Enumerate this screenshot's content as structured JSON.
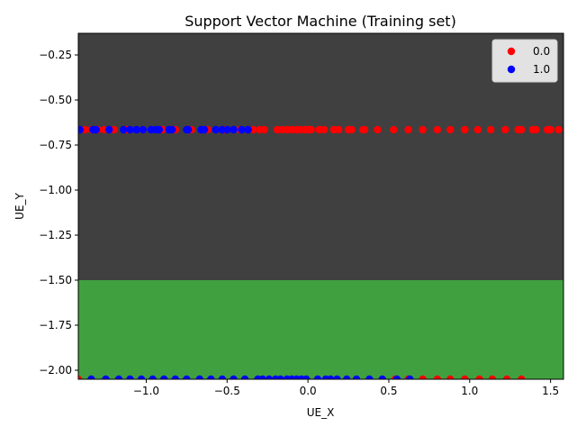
{
  "chart_data": {
    "type": "scatter",
    "title": "Support Vector Machine (Training set)",
    "xlabel": "UE_X",
    "ylabel": "UE_Y",
    "xlim": [
      -1.42,
      1.58
    ],
    "ylim": [
      -2.05,
      -0.13
    ],
    "x_ticks": [
      {
        "v": -1.0,
        "label": "−1.0"
      },
      {
        "v": -0.5,
        "label": "−0.5"
      },
      {
        "v": 0.0,
        "label": "0.0"
      },
      {
        "v": 0.5,
        "label": "0.5"
      },
      {
        "v": 1.0,
        "label": "1.0"
      },
      {
        "v": 1.5,
        "label": "1.5"
      }
    ],
    "y_ticks": [
      {
        "v": -0.25,
        "label": "−0.25"
      },
      {
        "v": -0.5,
        "label": "−0.50"
      },
      {
        "v": -0.75,
        "label": "−0.75"
      },
      {
        "v": -1.0,
        "label": "−1.00"
      },
      {
        "v": -1.25,
        "label": "−1.25"
      },
      {
        "v": -1.5,
        "label": "−1.50"
      },
      {
        "v": -1.75,
        "label": "−1.75"
      },
      {
        "v": -2.0,
        "label": "−2.00"
      }
    ],
    "regions": [
      {
        "class": "0.0",
        "y_from": -1.5,
        "y_to": -0.13,
        "color": "#404040"
      },
      {
        "class": "1.0",
        "y_from": -2.05,
        "y_to": -1.5,
        "color": "#40a040"
      }
    ],
    "legend": {
      "placement": "top-right",
      "entries": [
        {
          "label": "0.0",
          "color": "#ff0000"
        },
        {
          "label": "1.0",
          "color": "#0000ff"
        }
      ]
    },
    "series": [
      {
        "name": "0.0",
        "color": "#ff0000",
        "points": [
          [
            -1.42,
            -0.665
          ],
          [
            -1.38,
            -0.665
          ],
          [
            -1.34,
            -0.665
          ],
          [
            -1.3,
            -0.665
          ],
          [
            -1.26,
            -0.665
          ],
          [
            -1.2,
            -0.665
          ],
          [
            -1.12,
            -0.665
          ],
          [
            -1.02,
            -0.665
          ],
          [
            -0.9,
            -0.665
          ],
          [
            -0.82,
            -0.665
          ],
          [
            -0.72,
            -0.665
          ],
          [
            -0.62,
            -0.665
          ],
          [
            -0.52,
            -0.665
          ],
          [
            -0.42,
            -0.665
          ],
          [
            -0.34,
            -0.665
          ],
          [
            -0.3,
            -0.665
          ],
          [
            -0.27,
            -0.665
          ],
          [
            -0.19,
            -0.665
          ],
          [
            -0.16,
            -0.665
          ],
          [
            -0.13,
            -0.665
          ],
          [
            -0.1,
            -0.665
          ],
          [
            -0.07,
            -0.665
          ],
          [
            -0.05,
            -0.665
          ],
          [
            -0.02,
            -0.665
          ],
          [
            0.0,
            -0.665
          ],
          [
            0.02,
            -0.665
          ],
          [
            0.07,
            -0.665
          ],
          [
            0.1,
            -0.665
          ],
          [
            0.16,
            -0.665
          ],
          [
            0.19,
            -0.665
          ],
          [
            0.25,
            -0.665
          ],
          [
            0.27,
            -0.665
          ],
          [
            0.34,
            -0.665
          ],
          [
            0.35,
            -0.665
          ],
          [
            0.43,
            -0.665
          ],
          [
            0.53,
            -0.665
          ],
          [
            0.62,
            -0.665
          ],
          [
            0.71,
            -0.665
          ],
          [
            0.8,
            -0.665
          ],
          [
            0.88,
            -0.665
          ],
          [
            0.97,
            -0.665
          ],
          [
            1.05,
            -0.665
          ],
          [
            1.13,
            -0.665
          ],
          [
            1.22,
            -0.665
          ],
          [
            1.3,
            -0.665
          ],
          [
            1.32,
            -0.665
          ],
          [
            1.39,
            -0.665
          ],
          [
            1.41,
            -0.665
          ],
          [
            1.48,
            -0.665
          ],
          [
            1.5,
            -0.665
          ],
          [
            1.55,
            -0.665
          ],
          [
            -1.42,
            -2.05
          ],
          [
            0.54,
            -2.05
          ],
          [
            0.62,
            -2.05
          ],
          [
            0.71,
            -2.05
          ],
          [
            0.8,
            -2.05
          ],
          [
            0.88,
            -2.05
          ],
          [
            0.97,
            -2.05
          ],
          [
            1.06,
            -2.05
          ],
          [
            1.14,
            -2.05
          ],
          [
            1.23,
            -2.05
          ],
          [
            1.32,
            -2.05
          ]
        ]
      },
      {
        "name": "1.0",
        "color": "#0000ff",
        "points": [
          [
            -1.41,
            -0.665
          ],
          [
            -1.33,
            -0.665
          ],
          [
            -1.31,
            -0.665
          ],
          [
            -1.23,
            -0.665
          ],
          [
            -1.14,
            -0.665
          ],
          [
            -1.1,
            -0.665
          ],
          [
            -1.06,
            -0.665
          ],
          [
            -1.02,
            -0.665
          ],
          [
            -0.97,
            -0.665
          ],
          [
            -0.94,
            -0.665
          ],
          [
            -0.92,
            -0.665
          ],
          [
            -0.86,
            -0.665
          ],
          [
            -0.84,
            -0.665
          ],
          [
            -0.75,
            -0.665
          ],
          [
            -0.74,
            -0.665
          ],
          [
            -0.66,
            -0.665
          ],
          [
            -0.64,
            -0.665
          ],
          [
            -0.57,
            -0.665
          ],
          [
            -0.53,
            -0.665
          ],
          [
            -0.5,
            -0.665
          ],
          [
            -0.46,
            -0.665
          ],
          [
            -0.41,
            -0.665
          ],
          [
            -0.37,
            -0.665
          ],
          [
            -1.34,
            -2.05
          ],
          [
            -1.25,
            -2.05
          ],
          [
            -1.17,
            -2.05
          ],
          [
            -1.1,
            -2.05
          ],
          [
            -1.03,
            -2.05
          ],
          [
            -0.96,
            -2.05
          ],
          [
            -0.89,
            -2.05
          ],
          [
            -0.82,
            -2.05
          ],
          [
            -0.75,
            -2.05
          ],
          [
            -0.67,
            -2.05
          ],
          [
            -0.6,
            -2.05
          ],
          [
            -0.53,
            -2.05
          ],
          [
            -0.46,
            -2.05
          ],
          [
            -0.39,
            -2.05
          ],
          [
            -0.31,
            -2.05
          ],
          [
            -0.28,
            -2.05
          ],
          [
            -0.24,
            -2.05
          ],
          [
            -0.2,
            -2.05
          ],
          [
            -0.17,
            -2.05
          ],
          [
            -0.13,
            -2.05
          ],
          [
            -0.1,
            -2.05
          ],
          [
            -0.07,
            -2.05
          ],
          [
            -0.04,
            -2.05
          ],
          [
            -0.01,
            -2.05
          ],
          [
            0.06,
            -2.05
          ],
          [
            0.11,
            -2.05
          ],
          [
            0.14,
            -2.05
          ],
          [
            0.18,
            -2.05
          ],
          [
            0.24,
            -2.05
          ],
          [
            0.3,
            -2.05
          ],
          [
            0.38,
            -2.05
          ],
          [
            0.46,
            -2.05
          ],
          [
            0.55,
            -2.05
          ],
          [
            0.63,
            -2.05
          ]
        ]
      }
    ]
  }
}
